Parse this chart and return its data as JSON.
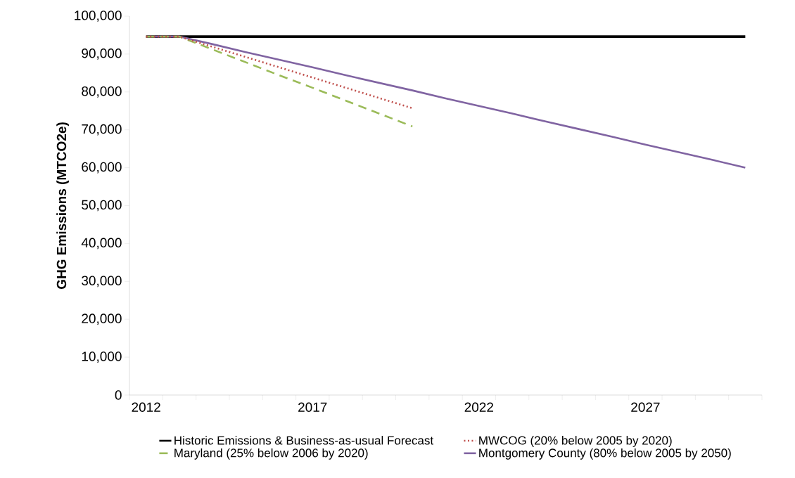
{
  "chart_data": {
    "type": "line",
    "ylabel": "GHG Emissions (MTCO2e)",
    "categories": [
      "2012",
      null,
      null,
      null,
      null,
      "2017",
      null,
      null,
      null,
      null,
      "2022",
      null,
      null,
      null,
      null,
      "2027",
      null,
      null,
      null
    ],
    "ylim": [
      0,
      100000
    ],
    "yticks": [
      {
        "value": 0,
        "label": "0"
      },
      {
        "value": 10000,
        "label": "10,000"
      },
      {
        "value": 20000,
        "label": "20,000"
      },
      {
        "value": 30000,
        "label": "30,000"
      },
      {
        "value": 40000,
        "label": "40,000"
      },
      {
        "value": 50000,
        "label": "50,000"
      },
      {
        "value": 60000,
        "label": "60,000"
      },
      {
        "value": 70000,
        "label": "70,000"
      },
      {
        "value": 80000,
        "label": "80,000"
      },
      {
        "value": 90000,
        "label": "90,000"
      },
      {
        "value": 100000,
        "label": "100,000"
      }
    ],
    "grid": false,
    "legend": "bottom",
    "marker": "none",
    "series": [
      {
        "name": "Historic Emissions & Business-as-usual Forecast",
        "color": "#000000",
        "line_style": "solid",
        "values": [
          94600,
          94600,
          94600,
          94600,
          94600,
          94600,
          94600,
          94600,
          94600,
          94600,
          94600,
          94600,
          94600,
          94600,
          94600,
          94600,
          94600,
          94600,
          94600
        ]
      },
      {
        "name": "MWCOG (20% below 2005 by 2020)",
        "color": "#c0504d",
        "line_style": "dotted",
        "values": [
          94600,
          94600,
          91900,
          89200,
          86500,
          83800,
          81100,
          78400,
          75700,
          null,
          null,
          null,
          null,
          null,
          null,
          null,
          null,
          null,
          null
        ]
      },
      {
        "name": "Maryland (25% below 2006 by 2020)",
        "color": "#9bbb59",
        "line_style": "dashed",
        "values": [
          94600,
          94600,
          91200,
          87800,
          84400,
          81100,
          77700,
          74300,
          70900,
          null,
          null,
          null,
          null,
          null,
          null,
          null,
          null,
          null,
          null
        ]
      },
      {
        "name": "Montgomery County (80% below 2005 by 2050)",
        "color": "#8064a2",
        "line_style": "solid",
        "values": [
          94600,
          94600,
          92600,
          90500,
          88500,
          86500,
          84400,
          82400,
          80400,
          78300,
          76300,
          74300,
          72200,
          70200,
          68200,
          66100,
          64100,
          62100,
          60000
        ]
      }
    ]
  }
}
